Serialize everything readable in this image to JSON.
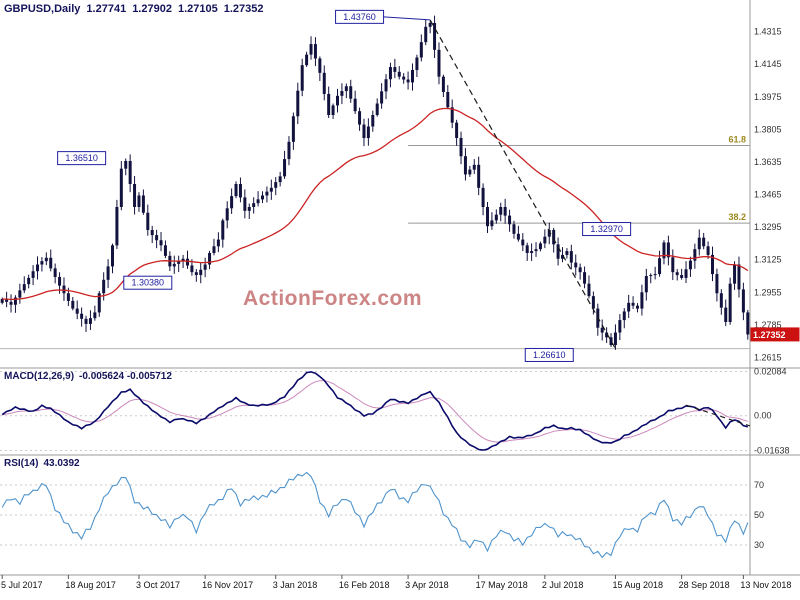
{
  "header": {
    "symbol_timeframe": "GBPUSD,Daily",
    "open": "1.27741",
    "high": "1.27902",
    "low": "1.27105",
    "close": "1.27352"
  },
  "watermark": "ActionForex.com",
  "colors": {
    "title": "#14145a",
    "watermark": "#cc8484",
    "candle": "#12123e",
    "ma": "#cc2222",
    "macd": "#0a0a6a",
    "signal": "#cc88bb",
    "rsi": "#4f94cd",
    "badge_bg": "#cc1111",
    "badge_text": "#ffffff",
    "annotation": "#2020a0",
    "fib_label": "#9a8a20",
    "fib_line": "#999999",
    "support_line": "#b5b5b5",
    "trendline": "#1a1a1a",
    "grid_dotted": "#c9c9c9",
    "panel_border": "#9a9a9a",
    "axis_text": "#333333",
    "date_text": "#111111"
  },
  "chart_data": [
    {
      "type": "candlestick",
      "title": "GBPUSD,Daily",
      "bars": 170,
      "y_range": [
        1.256,
        1.448
      ],
      "y_ticks": [
        1.4315,
        1.4145,
        1.3975,
        1.3805,
        1.3635,
        1.3465,
        1.3295,
        1.3125,
        1.2955,
        1.2785,
        1.2615
      ],
      "current_price": 1.27352,
      "support_level": 1.2661,
      "fib_levels": [
        {
          "label": "61.8",
          "price": 1.3721,
          "from_bar": 92
        },
        {
          "label": "38.2",
          "price": 1.3316,
          "from_bar": 92
        }
      ],
      "annotations": [
        {
          "text": "1.36510",
          "bar": 18,
          "price": 1.3655
        },
        {
          "text": "1.30380",
          "bar": 33,
          "price": 1.3005
        },
        {
          "text": "1.43760",
          "bar": 81,
          "price": 1.4392,
          "connect_to": [
            97,
            1.4376
          ]
        },
        {
          "text": "1.32970",
          "bar": 137,
          "price": 1.3285
        },
        {
          "text": "1.26610",
          "bar": 124,
          "price": 1.2628
        }
      ],
      "trendline": {
        "from": [
          97,
          1.4376
        ],
        "to": [
          139,
          1.2661
        ]
      },
      "x_ticks": [
        {
          "bar": 0,
          "label": "5 Jul 2017"
        },
        {
          "bar": 15,
          "label": "18 Aug 2017"
        },
        {
          "bar": 31,
          "label": "3 Oct 2017"
        },
        {
          "bar": 46,
          "label": "16 Nov 2017"
        },
        {
          "bar": 62,
          "label": "3 Jan 2018"
        },
        {
          "bar": 77,
          "label": "16 Feb 2018"
        },
        {
          "bar": 92,
          "label": "3 Apr 2018"
        },
        {
          "bar": 108,
          "label": "17 May 2018"
        },
        {
          "bar": 123,
          "label": "2 Jul 2018"
        },
        {
          "bar": 139,
          "label": "15 Aug 2018"
        },
        {
          "bar": 154,
          "label": "28 Sep 2018"
        },
        {
          "bar": 168,
          "label": "13 Nov 2018"
        }
      ],
      "price_path": [
        [
          0,
          1.292
        ],
        [
          2,
          1.289
        ],
        [
          4,
          1.2965
        ],
        [
          6,
          1.303
        ],
        [
          8,
          1.31
        ],
        [
          10,
          1.3135
        ],
        [
          11,
          1.308
        ],
        [
          13,
          1.299
        ],
        [
          16,
          1.287
        ],
        [
          19,
          1.279
        ],
        [
          21,
          1.285
        ],
        [
          22,
          1.295
        ],
        [
          24,
          1.309
        ],
        [
          25,
          1.32
        ],
        [
          27,
          1.36
        ],
        [
          28,
          1.364
        ],
        [
          30,
          1.34
        ],
        [
          31,
          1.346
        ],
        [
          33,
          1.328
        ],
        [
          36,
          1.32
        ],
        [
          38,
          1.309
        ],
        [
          41,
          1.313
        ],
        [
          43,
          1.306
        ],
        [
          44,
          1.3045
        ],
        [
          46,
          1.31
        ],
        [
          47,
          1.316
        ],
        [
          49,
          1.323
        ],
        [
          50,
          1.333
        ],
        [
          53,
          1.352
        ],
        [
          55,
          1.338
        ],
        [
          58,
          1.344
        ],
        [
          61,
          1.35
        ],
        [
          63,
          1.356
        ],
        [
          65,
          1.374
        ],
        [
          68,
          1.414
        ],
        [
          70,
          1.425
        ],
        [
          72,
          1.41
        ],
        [
          74,
          1.388
        ],
        [
          76,
          1.398
        ],
        [
          78,
          1.403
        ],
        [
          80,
          1.39
        ],
        [
          82,
          1.376
        ],
        [
          85,
          1.394
        ],
        [
          88,
          1.413
        ],
        [
          90,
          1.408
        ],
        [
          92,
          1.405
        ],
        [
          94,
          1.418
        ],
        [
          96,
          1.434
        ],
        [
          97,
          1.436
        ],
        [
          99,
          1.408
        ],
        [
          101,
          1.392
        ],
        [
          103,
          1.376
        ],
        [
          105,
          1.357
        ],
        [
          107,
          1.362
        ],
        [
          108,
          1.35
        ],
        [
          110,
          1.33
        ],
        [
          112,
          1.336
        ],
        [
          113,
          1.34
        ],
        [
          115,
          1.331
        ],
        [
          116,
          1.326
        ],
        [
          118,
          1.32
        ],
        [
          119,
          1.316
        ],
        [
          121,
          1.318
        ],
        [
          122,
          1.321
        ],
        [
          124,
          1.328
        ],
        [
          126,
          1.313
        ],
        [
          128,
          1.317
        ],
        [
          129,
          1.311
        ],
        [
          131,
          1.306
        ],
        [
          132,
          1.3
        ],
        [
          134,
          1.287
        ],
        [
          135,
          1.277
        ],
        [
          137,
          1.272
        ],
        [
          138,
          1.268
        ],
        [
          140,
          1.281
        ],
        [
          142,
          1.29
        ],
        [
          144,
          1.287
        ],
        [
          146,
          1.304
        ],
        [
          148,
          1.305
        ],
        [
          150,
          1.3215
        ],
        [
          152,
          1.306
        ],
        [
          154,
          1.303
        ],
        [
          156,
          1.312
        ],
        [
          158,
          1.324
        ],
        [
          160,
          1.315
        ],
        [
          162,
          1.295
        ],
        [
          164,
          1.28
        ],
        [
          165,
          1.3
        ],
        [
          166,
          1.31
        ],
        [
          167,
          1.297
        ],
        [
          168,
          1.285
        ],
        [
          169,
          1.2735
        ]
      ]
    },
    {
      "type": "line",
      "title": "MACD(12,26,9)",
      "values": "-0.005624 -0.005712",
      "y_range": [
        -0.0185,
        0.0225
      ],
      "y_ticks": [
        [
          0.02084,
          "0.02084"
        ],
        [
          0,
          "0.00"
        ],
        [
          -0.01638,
          "-0.01638"
        ]
      ],
      "trendline": {
        "from": [
          155,
          0.005
        ],
        "to": [
          169.5,
          -0.0048
        ]
      },
      "macd_points": [
        [
          0,
          0.0005
        ],
        [
          3,
          0.0038
        ],
        [
          5,
          0.0028
        ],
        [
          7,
          0.002
        ],
        [
          9,
          0.0048
        ],
        [
          11,
          0.0035
        ],
        [
          13,
          0.0005
        ],
        [
          15,
          -0.003
        ],
        [
          18,
          -0.0058
        ],
        [
          21,
          -0.003
        ],
        [
          24,
          0.0042
        ],
        [
          27,
          0.0108
        ],
        [
          29,
          0.0122
        ],
        [
          32,
          0.0062
        ],
        [
          35,
          0.0012
        ],
        [
          38,
          -0.0028
        ],
        [
          40,
          -0.0012
        ],
        [
          42,
          -0.002
        ],
        [
          44,
          -0.0035
        ],
        [
          46,
          -0.0012
        ],
        [
          48,
          0.0018
        ],
        [
          50,
          0.0045
        ],
        [
          53,
          0.0082
        ],
        [
          55,
          0.0058
        ],
        [
          57,
          0.0048
        ],
        [
          59,
          0.0052
        ],
        [
          61,
          0.0055
        ],
        [
          64,
          0.0092
        ],
        [
          67,
          0.0165
        ],
        [
          69,
          0.02
        ],
        [
          70,
          0.0208
        ],
        [
          72,
          0.0185
        ],
        [
          74,
          0.014
        ],
        [
          76,
          0.0085
        ],
        [
          78,
          0.0062
        ],
        [
          80,
          0.003
        ],
        [
          82,
          0.0002
        ],
        [
          84,
          0.0012
        ],
        [
          86,
          0.0042
        ],
        [
          88,
          0.008
        ],
        [
          90,
          0.0068
        ],
        [
          92,
          0.006
        ],
        [
          94,
          0.0082
        ],
        [
          96,
          0.0105
        ],
        [
          97,
          0.011
        ],
        [
          99,
          0.006
        ],
        [
          101,
          -0.001
        ],
        [
          103,
          -0.0082
        ],
        [
          105,
          -0.012
        ],
        [
          107,
          -0.0148
        ],
        [
          109,
          -0.0162
        ],
        [
          111,
          -0.0145
        ],
        [
          113,
          -0.0122
        ],
        [
          115,
          -0.01
        ],
        [
          117,
          -0.0105
        ],
        [
          119,
          -0.0098
        ],
        [
          121,
          -0.0086
        ],
        [
          123,
          -0.006
        ],
        [
          125,
          -0.0048
        ],
        [
          127,
          -0.0062
        ],
        [
          129,
          -0.0058
        ],
        [
          131,
          -0.0066
        ],
        [
          133,
          -0.0092
        ],
        [
          135,
          -0.0118
        ],
        [
          137,
          -0.0128
        ],
        [
          139,
          -0.0122
        ],
        [
          141,
          -0.0095
        ],
        [
          143,
          -0.0078
        ],
        [
          145,
          -0.0052
        ],
        [
          147,
          -0.0028
        ],
        [
          149,
          -0.0008
        ],
        [
          151,
          0.0022
        ],
        [
          153,
          0.0032
        ],
        [
          155,
          0.0045
        ],
        [
          156,
          0.0048
        ],
        [
          158,
          0.003
        ],
        [
          160,
          0.0042
        ],
        [
          161,
          0.0025
        ],
        [
          162,
          0.0002
        ],
        [
          163,
          -0.003
        ],
        [
          164,
          -0.0055
        ],
        [
          165,
          -0.0032
        ],
        [
          166,
          -0.0018
        ],
        [
          167,
          -0.003
        ],
        [
          168,
          -0.0046
        ],
        [
          169,
          -0.0056
        ]
      ]
    },
    {
      "type": "line",
      "title": "RSI(14)",
      "value": "43.0392",
      "y_range": [
        10,
        90
      ],
      "y_ticks": [
        70,
        50,
        30
      ],
      "points": [
        [
          0,
          55
        ],
        [
          2,
          62
        ],
        [
          4,
          58
        ],
        [
          6,
          65
        ],
        [
          8,
          68
        ],
        [
          10,
          70
        ],
        [
          12,
          55
        ],
        [
          14,
          45
        ],
        [
          16,
          40
        ],
        [
          18,
          35
        ],
        [
          20,
          42
        ],
        [
          22,
          55
        ],
        [
          24,
          65
        ],
        [
          26,
          72
        ],
        [
          28,
          75
        ],
        [
          30,
          60
        ],
        [
          32,
          55
        ],
        [
          34,
          52
        ],
        [
          36,
          48
        ],
        [
          38,
          42
        ],
        [
          40,
          50
        ],
        [
          42,
          48
        ],
        [
          44,
          40
        ],
        [
          46,
          52
        ],
        [
          48,
          58
        ],
        [
          50,
          62
        ],
        [
          52,
          68
        ],
        [
          54,
          58
        ],
        [
          56,
          60
        ],
        [
          58,
          62
        ],
        [
          60,
          63
        ],
        [
          62,
          66
        ],
        [
          64,
          70
        ],
        [
          66,
          74
        ],
        [
          68,
          78
        ],
        [
          70,
          76
        ],
        [
          72,
          60
        ],
        [
          74,
          50
        ],
        [
          76,
          58
        ],
        [
          78,
          62
        ],
        [
          80,
          52
        ],
        [
          82,
          44
        ],
        [
          84,
          52
        ],
        [
          86,
          60
        ],
        [
          88,
          68
        ],
        [
          90,
          62
        ],
        [
          92,
          60
        ],
        [
          94,
          66
        ],
        [
          96,
          72
        ],
        [
          98,
          64
        ],
        [
          100,
          52
        ],
        [
          102,
          44
        ],
        [
          104,
          34
        ],
        [
          106,
          30
        ],
        [
          108,
          33
        ],
        [
          110,
          28
        ],
        [
          112,
          36
        ],
        [
          114,
          40
        ],
        [
          116,
          34
        ],
        [
          118,
          31
        ],
        [
          120,
          38
        ],
        [
          122,
          42
        ],
        [
          124,
          44
        ],
        [
          126,
          36
        ],
        [
          128,
          38
        ],
        [
          130,
          35
        ],
        [
          132,
          30
        ],
        [
          134,
          26
        ],
        [
          136,
          22
        ],
        [
          138,
          25
        ],
        [
          140,
          36
        ],
        [
          142,
          42
        ],
        [
          144,
          40
        ],
        [
          146,
          50
        ],
        [
          148,
          52
        ],
        [
          150,
          60
        ],
        [
          152,
          48
        ],
        [
          154,
          44
        ],
        [
          156,
          50
        ],
        [
          158,
          57
        ],
        [
          160,
          50
        ],
        [
          162,
          38
        ],
        [
          164,
          32
        ],
        [
          166,
          48
        ],
        [
          168,
          38
        ],
        [
          169,
          43
        ]
      ]
    }
  ]
}
